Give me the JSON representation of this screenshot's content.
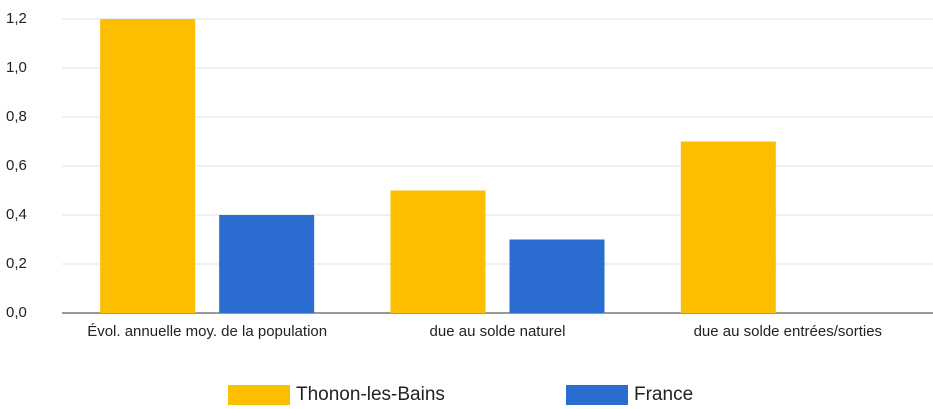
{
  "chart_data": {
    "type": "bar",
    "categories": [
      "Évol. annuelle moy. de la population",
      "due au solde naturel",
      "due au solde entrées/sorties"
    ],
    "series": [
      {
        "name": "Thonon-les-Bains",
        "color": "#fcbf00",
        "values": [
          1.2,
          0.5,
          0.7
        ]
      },
      {
        "name": "France",
        "color": "#2a6ccf",
        "values": [
          0.4,
          0.3,
          0.0
        ]
      }
    ],
    "ylim": [
      0,
      1.2
    ],
    "yticks": [
      {
        "value": 0,
        "label": "0,0"
      },
      {
        "value": 0.2,
        "label": "0,2"
      },
      {
        "value": 0.4,
        "label": "0,4"
      },
      {
        "value": 0.6,
        "label": "0,6"
      },
      {
        "value": 0.8,
        "label": "0,8"
      },
      {
        "value": 1.0,
        "label": "1,0"
      },
      {
        "value": 1.2,
        "label": "1,2"
      }
    ],
    "grid": true,
    "legend": "bottom"
  }
}
